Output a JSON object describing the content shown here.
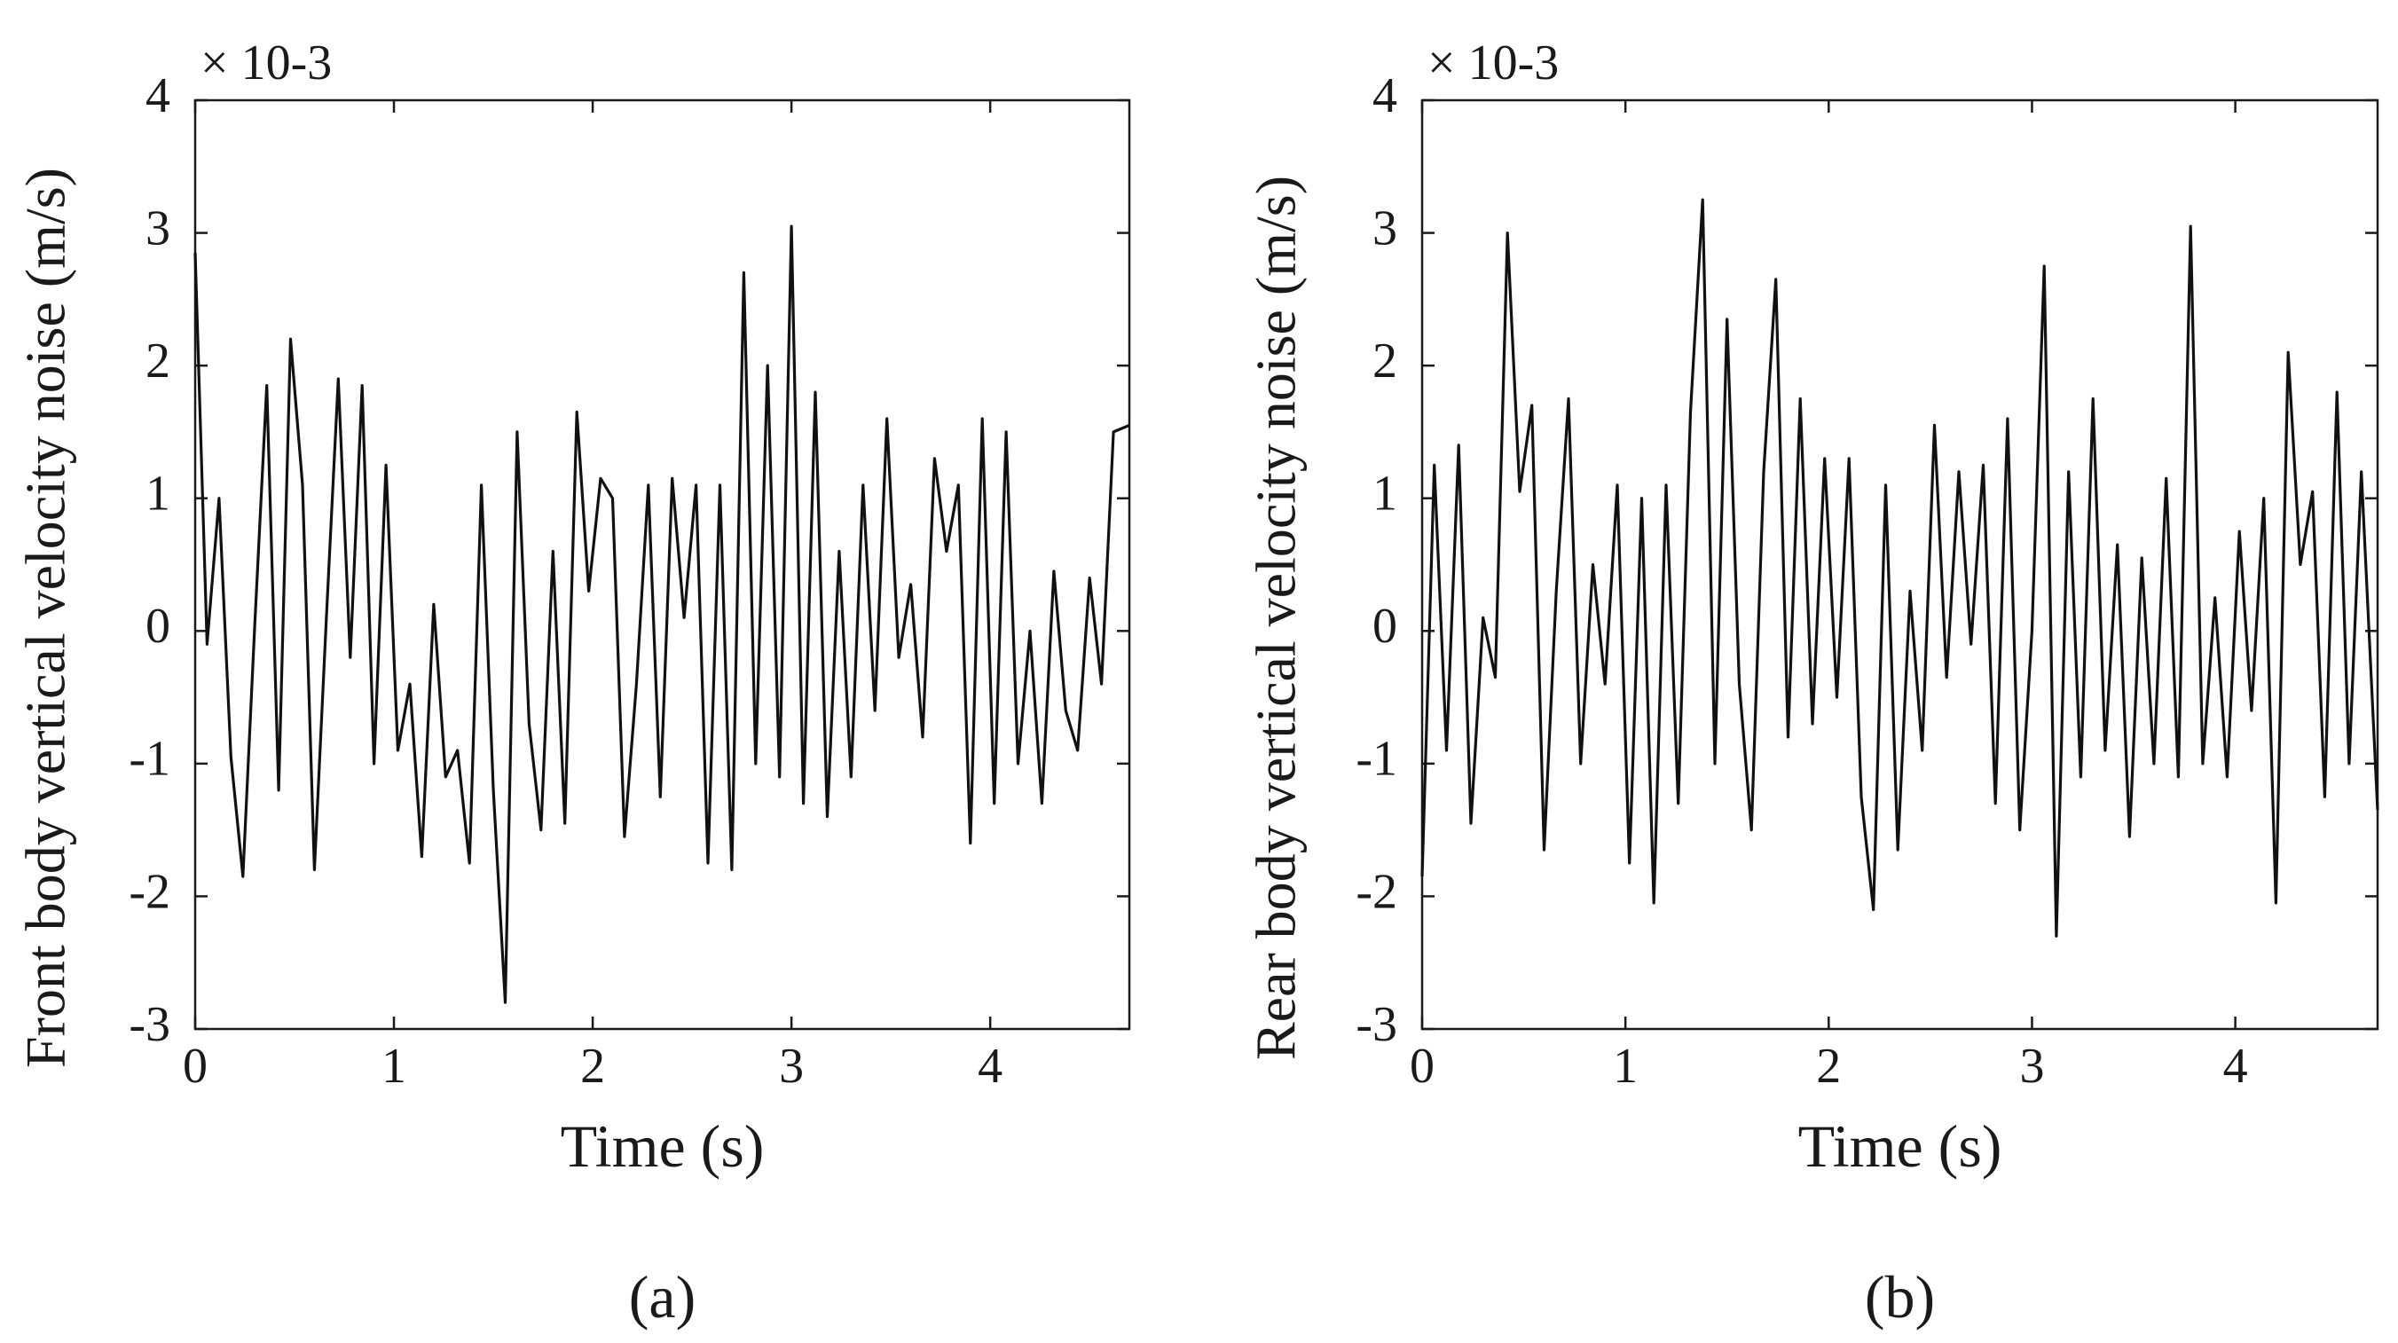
{
  "chart_data": [
    {
      "type": "line",
      "panel_label": "(a)",
      "exponent_label": "× 10-3",
      "exponent": "-3",
      "xlabel": "Time (s)",
      "ylabel": "Front body vertical velocity noise  (m/s)",
      "xlim": [
        0,
        4.7
      ],
      "ylim": [
        -3,
        4
      ],
      "xticks": [
        0,
        1,
        2,
        3,
        4
      ],
      "yticks": [
        -3,
        -2,
        -1,
        0,
        1,
        2,
        3,
        4
      ],
      "grid": false,
      "series": [
        {
          "name": "front",
          "x": [
            0.0,
            0.06,
            0.12,
            0.18,
            0.24,
            0.3,
            0.36,
            0.42,
            0.48,
            0.54,
            0.6,
            0.66,
            0.72,
            0.78,
            0.84,
            0.9,
            0.96,
            1.02,
            1.08,
            1.14,
            1.2,
            1.26,
            1.32,
            1.38,
            1.44,
            1.5,
            1.56,
            1.62,
            1.68,
            1.74,
            1.8,
            1.86,
            1.92,
            1.98,
            2.04,
            2.1,
            2.16,
            2.22,
            2.28,
            2.34,
            2.4,
            2.46,
            2.52,
            2.58,
            2.64,
            2.7,
            2.76,
            2.82,
            2.88,
            2.94,
            3.0,
            3.06,
            3.12,
            3.18,
            3.24,
            3.3,
            3.36,
            3.42,
            3.48,
            3.54,
            3.6,
            3.66,
            3.72,
            3.78,
            3.84,
            3.9,
            3.96,
            4.02,
            4.08,
            4.14,
            4.2,
            4.26,
            4.32,
            4.38,
            4.44,
            4.5,
            4.56,
            4.62,
            4.7
          ],
          "values": [
            2.85,
            -0.1,
            1.0,
            -0.95,
            -1.85,
            0.05,
            1.85,
            -1.2,
            2.2,
            1.1,
            -1.8,
            0.1,
            1.9,
            -0.2,
            1.85,
            -1.0,
            1.25,
            -0.9,
            -0.4,
            -1.7,
            0.2,
            -1.1,
            -0.9,
            -1.75,
            1.1,
            -1.2,
            -2.8,
            1.5,
            -0.7,
            -1.5,
            0.6,
            -1.45,
            1.65,
            0.3,
            1.15,
            1.0,
            -1.55,
            -0.4,
            1.1,
            -1.25,
            1.15,
            0.1,
            1.1,
            -1.75,
            1.1,
            -1.8,
            2.7,
            -1.0,
            2.0,
            -1.1,
            3.05,
            -1.3,
            1.8,
            -1.4,
            0.6,
            -1.1,
            1.1,
            -0.6,
            1.6,
            -0.2,
            0.35,
            -0.8,
            1.3,
            0.6,
            1.1,
            -1.6,
            1.6,
            -1.3,
            1.5,
            -1.0,
            0.0,
            -1.3,
            0.45,
            -0.6,
            -0.9,
            0.4,
            -0.4,
            1.5,
            1.55
          ]
        }
      ]
    },
    {
      "type": "line",
      "panel_label": "(b)",
      "exponent_label": "× 10-3",
      "exponent": "-3",
      "xlabel": "Time (s)",
      "ylabel": "Rear body vertical velocity noise  (m/s)",
      "xlim": [
        0,
        4.7
      ],
      "ylim": [
        -3,
        4
      ],
      "xticks": [
        0,
        1,
        2,
        3,
        4
      ],
      "yticks": [
        -3,
        -2,
        -1,
        0,
        1,
        2,
        3,
        4
      ],
      "grid": false,
      "series": [
        {
          "name": "rear",
          "x": [
            0.0,
            0.06,
            0.12,
            0.18,
            0.24,
            0.3,
            0.36,
            0.42,
            0.48,
            0.54,
            0.6,
            0.66,
            0.72,
            0.78,
            0.84,
            0.9,
            0.96,
            1.02,
            1.08,
            1.14,
            1.2,
            1.26,
            1.32,
            1.38,
            1.44,
            1.5,
            1.56,
            1.62,
            1.68,
            1.74,
            1.8,
            1.86,
            1.92,
            1.98,
            2.04,
            2.1,
            2.16,
            2.22,
            2.28,
            2.34,
            2.4,
            2.46,
            2.52,
            2.58,
            2.64,
            2.7,
            2.76,
            2.82,
            2.88,
            2.94,
            3.0,
            3.06,
            3.12,
            3.18,
            3.24,
            3.3,
            3.36,
            3.42,
            3.48,
            3.54,
            3.6,
            3.66,
            3.72,
            3.78,
            3.84,
            3.9,
            3.96,
            4.02,
            4.08,
            4.14,
            4.2,
            4.26,
            4.32,
            4.38,
            4.44,
            4.5,
            4.56,
            4.62,
            4.7
          ],
          "values": [
            -1.85,
            1.25,
            -0.9,
            1.4,
            -1.45,
            0.1,
            -0.35,
            3.0,
            1.05,
            1.7,
            -1.65,
            0.3,
            1.75,
            -1.0,
            0.5,
            -0.4,
            1.1,
            -1.75,
            1.0,
            -2.05,
            1.1,
            -1.3,
            1.65,
            3.25,
            -1.0,
            2.35,
            -0.4,
            -1.5,
            1.2,
            2.65,
            -0.8,
            1.75,
            -0.7,
            1.3,
            -0.5,
            1.3,
            -1.25,
            -2.1,
            1.1,
            -1.65,
            0.3,
            -0.9,
            1.55,
            -0.35,
            1.2,
            -0.1,
            1.25,
            -1.3,
            1.6,
            -1.5,
            0.0,
            2.75,
            -2.3,
            1.2,
            -1.1,
            1.75,
            -0.9,
            0.65,
            -1.55,
            0.55,
            -1.0,
            1.15,
            -1.1,
            3.05,
            -1.0,
            0.25,
            -1.1,
            0.75,
            -0.6,
            1.0,
            -2.05,
            2.1,
            0.5,
            1.05,
            -1.25,
            1.8,
            -1.0,
            1.2,
            -1.35
          ]
        }
      ]
    }
  ]
}
